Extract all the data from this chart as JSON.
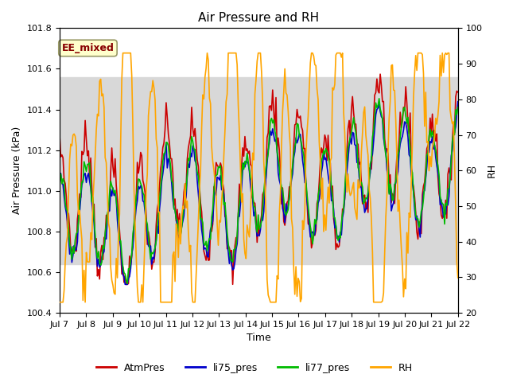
{
  "title": "Air Pressure and RH",
  "xlabel": "Time",
  "ylabel_left": "Air Pressure (kPa)",
  "ylabel_right": "RH",
  "annotation": "EE_mixed",
  "ylim_left": [
    100.4,
    101.8
  ],
  "ylim_right": [
    20,
    100
  ],
  "yticks_left": [
    100.4,
    100.6,
    100.8,
    101.0,
    101.2,
    101.4,
    101.6,
    101.8
  ],
  "yticks_right": [
    20,
    30,
    40,
    50,
    60,
    70,
    80,
    90,
    100
  ],
  "colors": {
    "AtmPres": "#cc0000",
    "li75_pres": "#0000cc",
    "li77_pres": "#00bb00",
    "RH": "#ffa500"
  },
  "shade_region": [
    100.64,
    101.56
  ],
  "shade_color": "#d8d8d8",
  "annotation_bg": "#ffffcc",
  "annotation_border": "#999966",
  "annotation_text_color": "#880000",
  "title_fontsize": 11,
  "label_fontsize": 9,
  "tick_fontsize": 8,
  "legend_fontsize": 9,
  "line_width": 1.2
}
